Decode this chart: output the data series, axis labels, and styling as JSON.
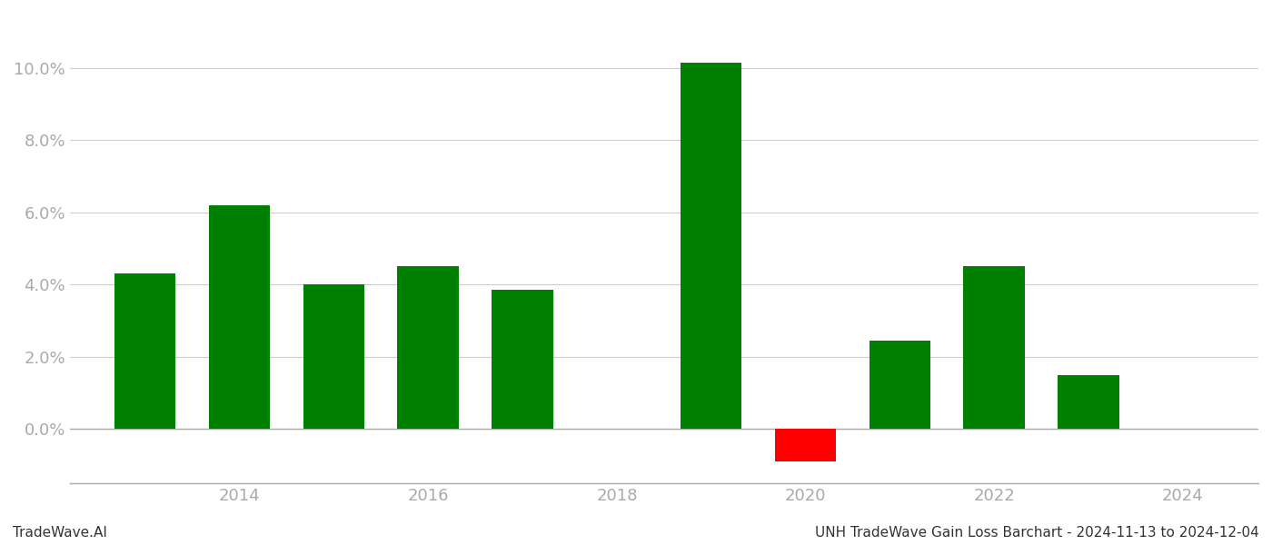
{
  "years": [
    2013,
    2014,
    2015,
    2016,
    2017,
    2019,
    2020,
    2021,
    2022,
    2023
  ],
  "values": [
    4.3,
    6.2,
    4.0,
    4.5,
    3.85,
    10.15,
    -0.9,
    2.45,
    4.5,
    1.5
  ],
  "colors": [
    "#008000",
    "#008000",
    "#008000",
    "#008000",
    "#008000",
    "#008000",
    "#ff0000",
    "#008000",
    "#008000",
    "#008000"
  ],
  "ylim": [
    -1.5,
    11.5
  ],
  "yticks": [
    0.0,
    2.0,
    4.0,
    6.0,
    8.0,
    10.0
  ],
  "xlim": [
    2012.2,
    2024.8
  ],
  "xtick_labels": [
    "2014",
    "2016",
    "2018",
    "2020",
    "2022",
    "2024"
  ],
  "xtick_positions": [
    2014,
    2016,
    2018,
    2020,
    2022,
    2024
  ],
  "bar_width": 0.65,
  "background_color": "#ffffff",
  "grid_color": "#cccccc",
  "axis_color": "#aaaaaa",
  "tick_color": "#aaaaaa",
  "footer_left": "TradeWave.AI",
  "footer_right": "UNH TradeWave Gain Loss Barchart - 2024-11-13 to 2024-12-04",
  "footer_fontsize": 11,
  "tick_fontsize": 13,
  "figsize": [
    14.0,
    6.0
  ],
  "dpi": 100
}
